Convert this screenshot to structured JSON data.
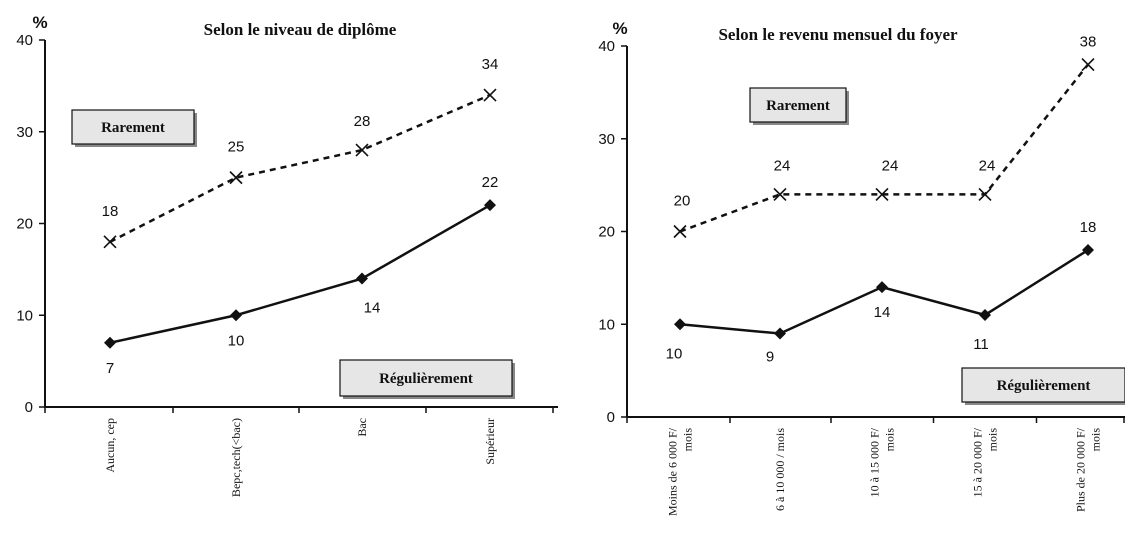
{
  "chart_data": [
    {
      "type": "line",
      "title": "Selon le niveau de diplôme",
      "unit_label": "%",
      "ylim": [
        0,
        40
      ],
      "yticks": [
        0,
        10,
        20,
        30,
        40
      ],
      "categories": [
        "Aucun, cep",
        "Bepc,tech(<bac)",
        "Bac",
        "Supérieur"
      ],
      "series": [
        {
          "name": "Rarement",
          "values": [
            18,
            25,
            28,
            34
          ],
          "style": "dashed",
          "marker": "x"
        },
        {
          "name": "Régulièrement",
          "values": [
            7,
            10,
            14,
            22
          ],
          "style": "solid",
          "marker": "diamond"
        }
      ],
      "grid": false
    },
    {
      "type": "line",
      "title": "Selon le revenu mensuel du foyer",
      "unit_label": "%",
      "ylim": [
        0,
        40
      ],
      "yticks": [
        0,
        10,
        20,
        30,
        40
      ],
      "categories": [
        [
          "Moins de 6 000 F/",
          "mois"
        ],
        [
          "6 à 10 000 / mois"
        ],
        [
          "10 à 15 000 F/",
          "mois"
        ],
        [
          "15 à 20 000 F/",
          "mois"
        ],
        [
          "Plus de 20 000 F/",
          "mois"
        ]
      ],
      "series": [
        {
          "name": "Rarement",
          "values": [
            20,
            24,
            24,
            24,
            38
          ],
          "style": "dashed",
          "marker": "x"
        },
        {
          "name": "Régulièrement",
          "values": [
            10,
            9,
            14,
            11,
            18
          ],
          "style": "solid",
          "marker": "diamond"
        }
      ],
      "grid": false
    }
  ]
}
